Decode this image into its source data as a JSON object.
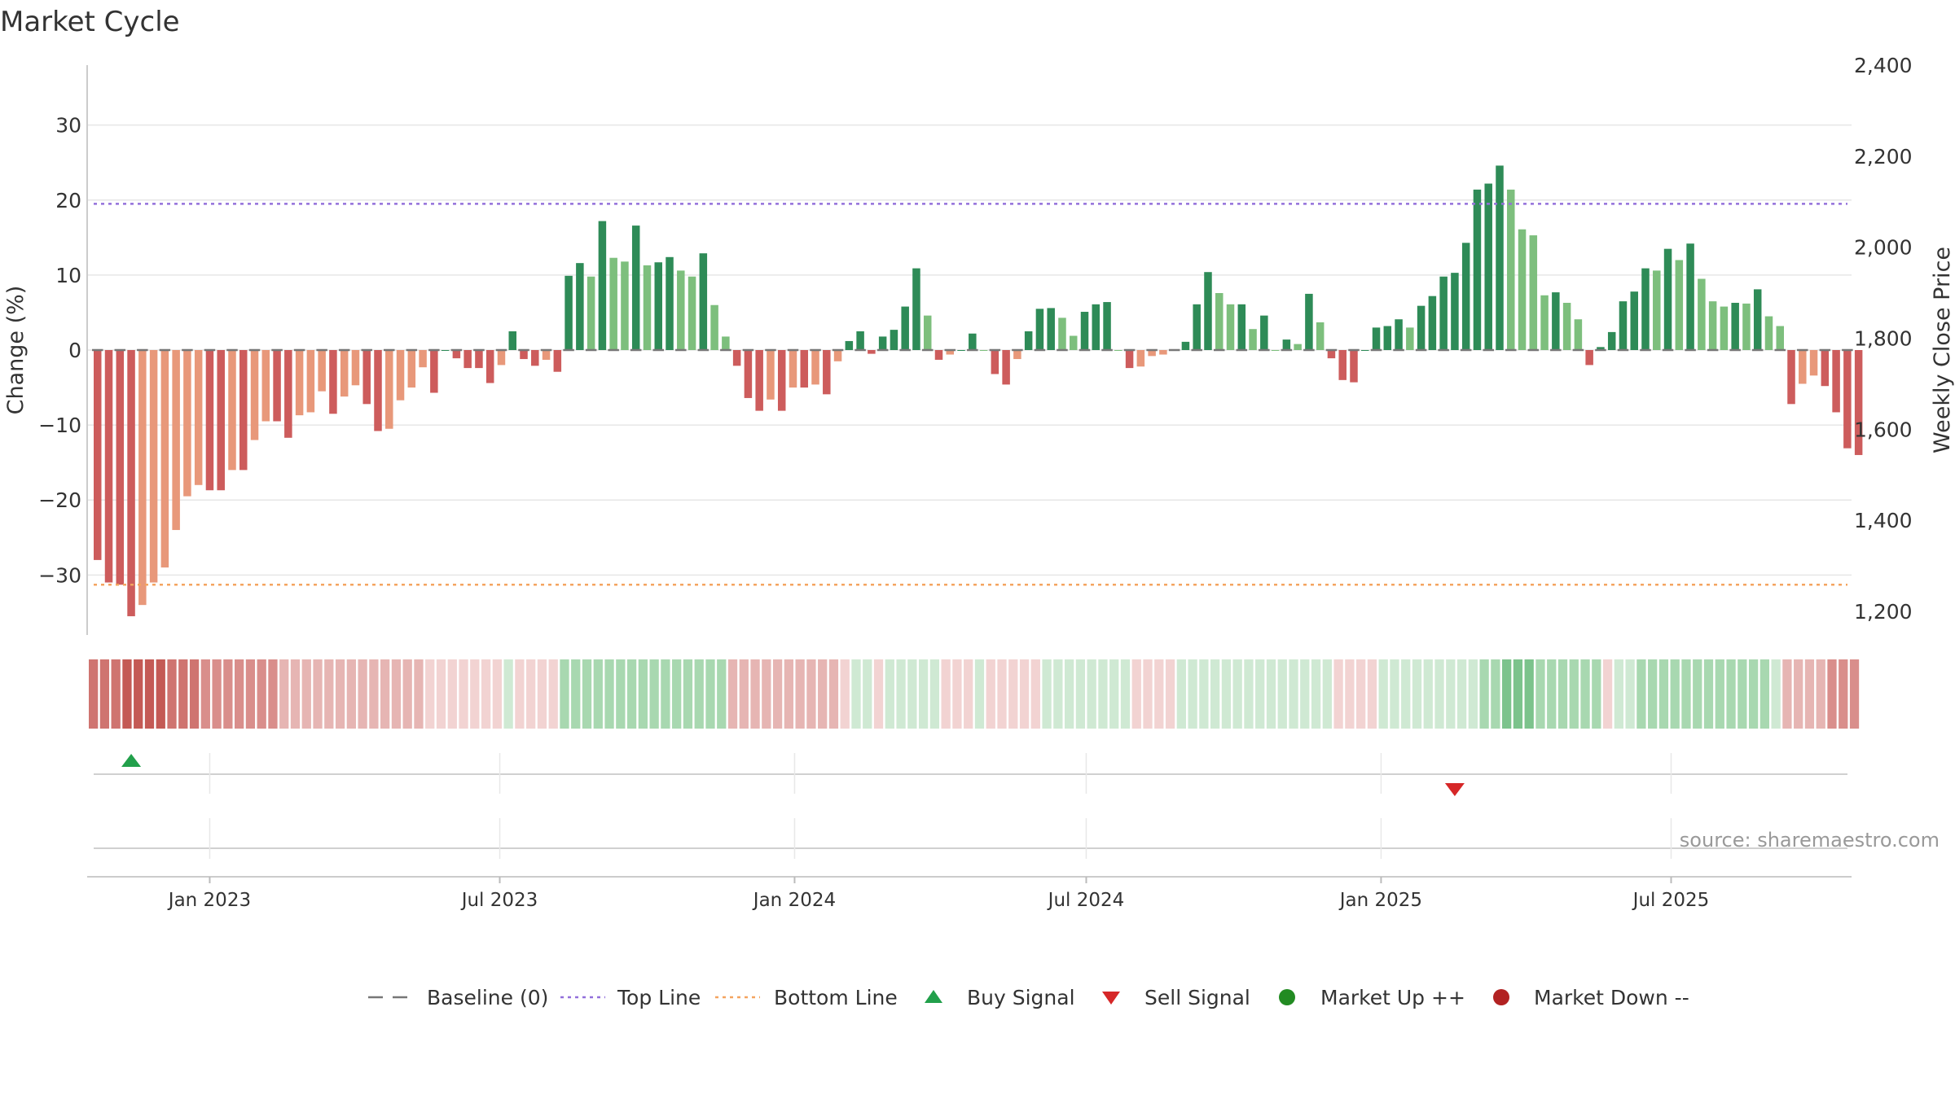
{
  "title": "Market Cycle",
  "source": "source: sharemaestro.com",
  "chart_data": {
    "type": "bar",
    "y_left_label": "Change (%)",
    "y_right_label": "Weekly Close Price",
    "y_left_ticks": [
      "30",
      "20",
      "10",
      "0",
      "−10",
      "−20",
      "−30"
    ],
    "y_left_tick_values": [
      30,
      20,
      10,
      0,
      -10,
      -20,
      -30
    ],
    "y_left_range": [
      -38,
      38
    ],
    "y_right_ticks": [
      "2,400",
      "2,200",
      "2,000",
      "1,800",
      "1,600",
      "1,400",
      "1,200"
    ],
    "y_right_tick_values": [
      2400,
      2200,
      2000,
      1800,
      1600,
      1400,
      1200
    ],
    "x_ticks": [
      "Jan 2023",
      "Jul 2023",
      "Jan 2024",
      "Jul 2024",
      "Jan 2025",
      "Jul 2025"
    ],
    "x_tick_dates": [
      "2023-01-01",
      "2023-07-01",
      "2024-01-01",
      "2024-07-01",
      "2025-01-01",
      "2025-07-01"
    ],
    "first_week": "2022-10-23",
    "week_step_days": 7,
    "top_line": 19.5,
    "bottom_line": -31.3,
    "grid": true,
    "values": [
      -28,
      -31,
      -31.3,
      -35.5,
      -34,
      -31,
      -29,
      -24,
      -19.5,
      -18,
      -18.7,
      -18.7,
      -16,
      -16,
      -12,
      -9.5,
      -9.5,
      -11.7,
      -8.7,
      -8.3,
      -5.5,
      -8.5,
      -6.2,
      -4.7,
      -7.2,
      -10.8,
      -10.5,
      -6.7,
      -5,
      -2.3,
      -5.7,
      0,
      -1.1,
      -2.4,
      -2.4,
      -4.4,
      -2,
      2.5,
      -1.2,
      -2.1,
      -1.3,
      -2.9,
      9.9,
      11.6,
      9.8,
      17.2,
      12.3,
      11.8,
      16.6,
      11.3,
      11.7,
      12.4,
      10.6,
      9.8,
      12.9,
      6,
      1.8,
      -2.1,
      -6.4,
      -8.1,
      -6.6,
      -8.1,
      -5,
      -5,
      -4.6,
      -5.9,
      -1.5,
      1.2,
      2.5,
      -0.5,
      1.8,
      2.7,
      5.8,
      10.9,
      4.6,
      -1.3,
      -0.6,
      0,
      2.2,
      0,
      -3.2,
      -4.6,
      -1.2,
      2.5,
      5.5,
      5.6,
      4.3,
      1.9,
      5.1,
      6.1,
      6.4,
      0,
      -2.4,
      -2.2,
      -0.8,
      -0.6,
      0,
      1.1,
      6.1,
      10.4,
      7.6,
      6.1,
      6.1,
      2.8,
      4.6,
      0,
      1.4,
      0.8,
      7.5,
      3.7,
      -1.1,
      -4,
      -4.3,
      0,
      3,
      3.2,
      4.1,
      3,
      5.9,
      7.2,
      9.8,
      10.3,
      14.3,
      21.4,
      22.2,
      24.6,
      21.4,
      16.1,
      15.3,
      7.3,
      7.7,
      6.3,
      4.1,
      -2,
      0.4,
      2.4,
      6.5,
      7.8,
      10.9,
      10.6,
      13.5,
      12,
      14.2,
      9.5,
      6.5,
      5.8,
      6.3,
      6.2,
      8.1,
      4.5,
      3.2,
      -7.2,
      -4.5,
      -3.4,
      -4.8,
      -8.3,
      -13.1,
      -14
    ],
    "heat_strip": [
      -4,
      -4,
      -4,
      -5,
      -5,
      -5,
      -5,
      -4,
      -4,
      -4,
      -3,
      -3,
      -3,
      -3,
      -3,
      -3,
      -3,
      -2,
      -2,
      -2,
      -2,
      -2,
      -2,
      -2,
      -2,
      -2,
      -2,
      -2,
      -2,
      -2,
      -1,
      -1,
      -1,
      -1,
      -1,
      -1,
      -1,
      1,
      -1,
      -1,
      -1,
      -1,
      2,
      2,
      2,
      2,
      2,
      2,
      2,
      2,
      2,
      2,
      2,
      2,
      2,
      2,
      2,
      -2,
      -2,
      -2,
      -2,
      -2,
      -2,
      -2,
      -2,
      -2,
      -2,
      -1,
      1,
      1,
      -1,
      1,
      1,
      1,
      1,
      1,
      -1,
      -1,
      -1,
      1,
      -1,
      -1,
      -1,
      -1,
      -1,
      1,
      1,
      1,
      1,
      1,
      1,
      1,
      1,
      -1,
      -1,
      -1,
      -1,
      1,
      1,
      1,
      1,
      1,
      1,
      1,
      1,
      1,
      1,
      1,
      1,
      1,
      1,
      -1,
      -1,
      -1,
      -1,
      1,
      1,
      1,
      1,
      1,
      1,
      1,
      1,
      1,
      2,
      2,
      3,
      3,
      3,
      2,
      2,
      2,
      2,
      2,
      2,
      -1,
      1,
      1,
      2,
      2,
      2,
      2,
      2,
      2,
      2,
      2,
      2,
      2,
      2,
      2,
      1,
      -2,
      -2,
      -2,
      -2,
      -3,
      -3,
      -3
    ],
    "buy_signals": [
      3
    ],
    "sell_signals": [
      121
    ]
  },
  "colors": {
    "strong_up": "#2e8b57",
    "weak_up": "#7dbf7d",
    "weak_down": "#e8987a",
    "strong_down": "#cd5c5c",
    "top_line": "#9370db",
    "bottom_line": "#f4a460",
    "buy": "#22a04b",
    "sell": "#d62728",
    "market_up": "#228b22",
    "market_down": "#b22222",
    "baseline": "#777777"
  },
  "legend": [
    {
      "key": "baseline",
      "label": "Baseline (0)"
    },
    {
      "key": "top",
      "label": "Top Line"
    },
    {
      "key": "bottom",
      "label": "Bottom Line"
    },
    {
      "key": "buy",
      "label": "Buy Signal"
    },
    {
      "key": "sell",
      "label": "Sell Signal"
    },
    {
      "key": "up",
      "label": "Market Up ++"
    },
    {
      "key": "down",
      "label": "Market Down --"
    }
  ]
}
